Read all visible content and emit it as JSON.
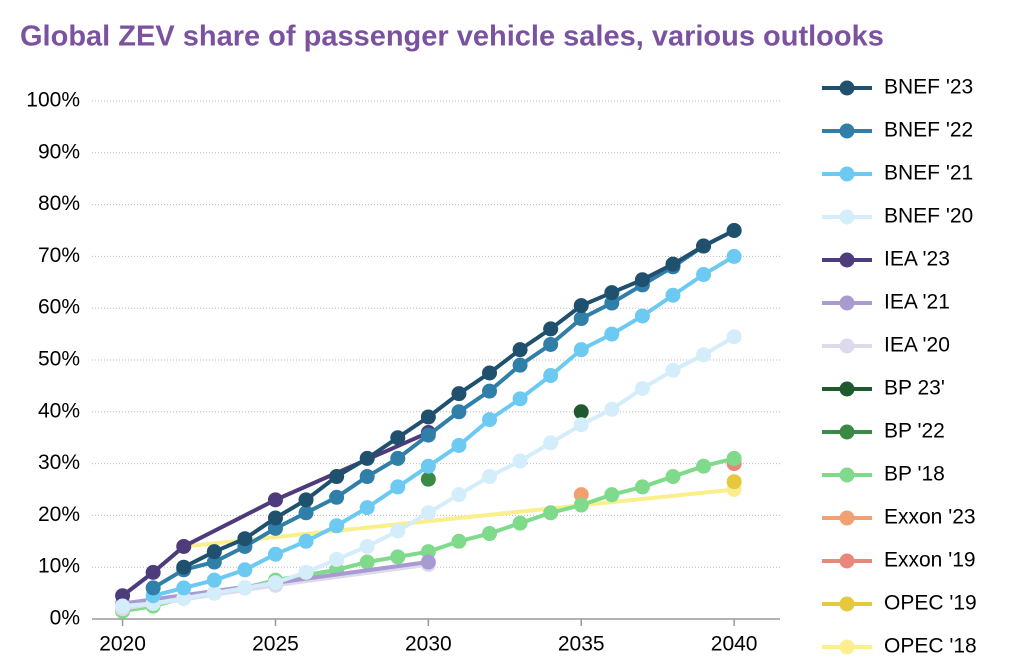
{
  "chart_data": {
    "type": "line",
    "title": "Global ZEV share of passenger vehicle sales, various outlooks",
    "xlim": [
      2019,
      2041.5
    ],
    "xticks": [
      2020,
      2025,
      2030,
      2035,
      2040
    ],
    "ylim": [
      0,
      100
    ],
    "yticks": [
      {
        "value": 0,
        "label": "0%"
      },
      {
        "value": 10,
        "label": "10%"
      },
      {
        "value": 20,
        "label": "20%"
      },
      {
        "value": 30,
        "label": "30%"
      },
      {
        "value": 40,
        "label": "40%"
      },
      {
        "value": 50,
        "label": "50%"
      },
      {
        "value": 60,
        "label": "60%"
      },
      {
        "value": 70,
        "label": "70%"
      },
      {
        "value": 80,
        "label": "80%"
      },
      {
        "value": 90,
        "label": "90%"
      },
      {
        "value": 100,
        "label": "100%"
      }
    ],
    "grid": true,
    "legend": "right",
    "series": [
      {
        "name": "BNEF '23",
        "color": "#1f506e",
        "x": [
          2022,
          2023,
          2024,
          2025,
          2026,
          2027,
          2028,
          2029,
          2030,
          2031,
          2032,
          2033,
          2034,
          2035,
          2036,
          2037,
          2038,
          2039,
          2040
        ],
        "values": [
          10,
          13,
          15.5,
          19.5,
          23,
          27.5,
          31,
          35,
          39,
          43.5,
          47.5,
          52,
          56,
          60.5,
          63,
          65.5,
          68.5,
          72,
          75
        ]
      },
      {
        "name": "BNEF '22",
        "color": "#2f7fa8",
        "x": [
          2021,
          2022,
          2023,
          2024,
          2025,
          2026,
          2027,
          2028,
          2029,
          2030,
          2031,
          2032,
          2033,
          2034,
          2035,
          2036,
          2037,
          2038,
          2039,
          2040
        ],
        "values": [
          6,
          9.5,
          11,
          14,
          17.5,
          20.5,
          23.5,
          27.5,
          31,
          35.5,
          40,
          44,
          49,
          53,
          58,
          61,
          64.5,
          68,
          72,
          75
        ]
      },
      {
        "name": "BNEF '21",
        "color": "#6ccaf2",
        "x": [
          2021,
          2022,
          2023,
          2024,
          2025,
          2026,
          2027,
          2028,
          2029,
          2030,
          2031,
          2032,
          2033,
          2034,
          2035,
          2036,
          2037,
          2038,
          2039,
          2040
        ],
        "values": [
          4.5,
          6,
          7.5,
          9.5,
          12.5,
          15,
          18,
          21.5,
          25.5,
          29.5,
          33.5,
          38.5,
          42.5,
          47,
          52,
          55,
          58.5,
          62.5,
          66.5,
          70
        ]
      },
      {
        "name": "BNEF '20",
        "color": "#d3edfa",
        "x": [
          2020,
          2021,
          2022,
          2023,
          2024,
          2025,
          2026,
          2027,
          2028,
          2029,
          2030,
          2031,
          2032,
          2033,
          2034,
          2035,
          2036,
          2037,
          2038,
          2039,
          2040
        ],
        "values": [
          2.5,
          3,
          4,
          5,
          6,
          7,
          9,
          11.5,
          14,
          17,
          20.5,
          24,
          27.5,
          30.5,
          34,
          37.5,
          40.5,
          44.5,
          48,
          51,
          54.5
        ]
      },
      {
        "name": "IEA '23",
        "color": "#4e3b7c",
        "x": [
          2020,
          2021,
          2022,
          2025,
          2030
        ],
        "values": [
          4.5,
          9,
          14,
          23,
          36
        ]
      },
      {
        "name": "IEA '21",
        "color": "#a99bd2",
        "x": [
          2020,
          2025,
          2030
        ],
        "values": [
          3,
          7,
          11
        ]
      },
      {
        "name": "IEA '20",
        "color": "#dedaec",
        "x": [
          2020,
          2025,
          2030
        ],
        "values": [
          2,
          6.5,
          10.5
        ]
      },
      {
        "name": "BP 23'",
        "color": "#1e5a2e",
        "x": [
          2035
        ],
        "values": [
          40
        ]
      },
      {
        "name": "BP '22",
        "color": "#3a8a46",
        "x": [
          2030
        ],
        "values": [
          27
        ]
      },
      {
        "name": "BP '18",
        "color": "#7fda8c",
        "x": [
          2020,
          2021,
          2022,
          2023,
          2024,
          2025,
          2026,
          2027,
          2028,
          2029,
          2030,
          2031,
          2032,
          2033,
          2034,
          2035,
          2036,
          2037,
          2038,
          2039,
          2040
        ],
        "values": [
          1.5,
          2.5,
          4,
          5,
          6,
          7.5,
          8.5,
          9.5,
          11,
          12,
          13,
          15,
          16.5,
          18.5,
          20.5,
          22,
          24,
          25.5,
          27.5,
          29.5,
          31
        ]
      },
      {
        "name": "Exxon '23",
        "color": "#f2a072",
        "x": [
          2035
        ],
        "values": [
          24
        ]
      },
      {
        "name": "Exxon '19",
        "color": "#e8877a",
        "x": [
          2040
        ],
        "values": [
          30
        ]
      },
      {
        "name": "OPEC '19",
        "color": "#e6c83e",
        "x": [
          2040
        ],
        "values": [
          26.5
        ]
      },
      {
        "name": "OPEC '18",
        "color": "#fbee8c",
        "x": [
          2022,
          2040
        ],
        "values": [
          14,
          25
        ]
      }
    ]
  }
}
